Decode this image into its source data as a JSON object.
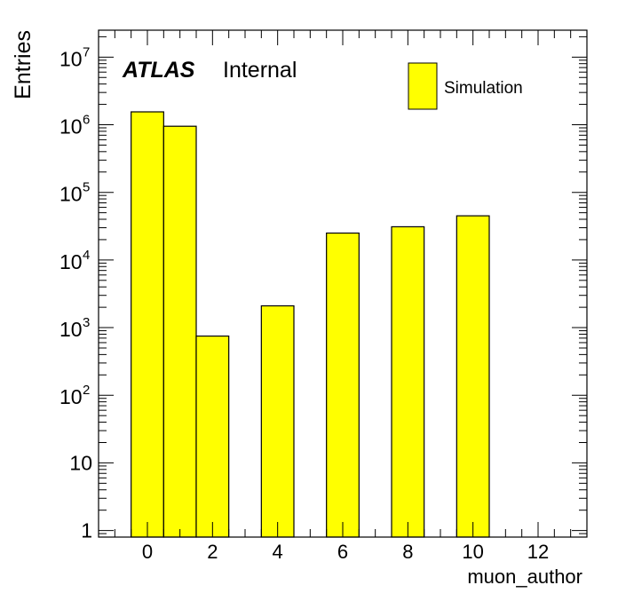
{
  "chart_data": {
    "type": "bar",
    "experiment_label": "ATLAS",
    "experiment_status": "Internal",
    "xlabel": "muon_author",
    "ylabel": "Entries",
    "y_scale": "log",
    "xlim": [
      -1.5,
      13.5
    ],
    "ylim": [
      0.8,
      25000000
    ],
    "x_ticks": [
      0,
      2,
      4,
      6,
      8,
      10,
      12
    ],
    "y_ticks": [
      {
        "value": 1,
        "mantissa": "1",
        "exp": ""
      },
      {
        "value": 10,
        "mantissa": "10",
        "exp": ""
      },
      {
        "value": 100,
        "mantissa": "10",
        "exp": "2"
      },
      {
        "value": 1000,
        "mantissa": "10",
        "exp": "3"
      },
      {
        "value": 10000,
        "mantissa": "10",
        "exp": "4"
      },
      {
        "value": 100000,
        "mantissa": "10",
        "exp": "5"
      },
      {
        "value": 1000000,
        "mantissa": "10",
        "exp": "6"
      },
      {
        "value": 10000000,
        "mantissa": "10",
        "exp": "7"
      }
    ],
    "bins": [
      {
        "low": -0.5,
        "high": 0.5,
        "value": 1550000
      },
      {
        "low": 0.5,
        "high": 1.5,
        "value": 950000
      },
      {
        "low": 1.5,
        "high": 2.5,
        "value": 750
      },
      {
        "low": 3.5,
        "high": 4.5,
        "value": 2100
      },
      {
        "low": 5.5,
        "high": 6.5,
        "value": 25000
      },
      {
        "low": 7.5,
        "high": 8.5,
        "value": 31000
      },
      {
        "low": 9.5,
        "high": 10.5,
        "value": 45000
      }
    ],
    "series": [
      {
        "name": "Simulation",
        "color": "#ffff00"
      }
    ],
    "legend_position": "top-right",
    "fill_color": "#ffff00",
    "edge_color": "#000000"
  }
}
